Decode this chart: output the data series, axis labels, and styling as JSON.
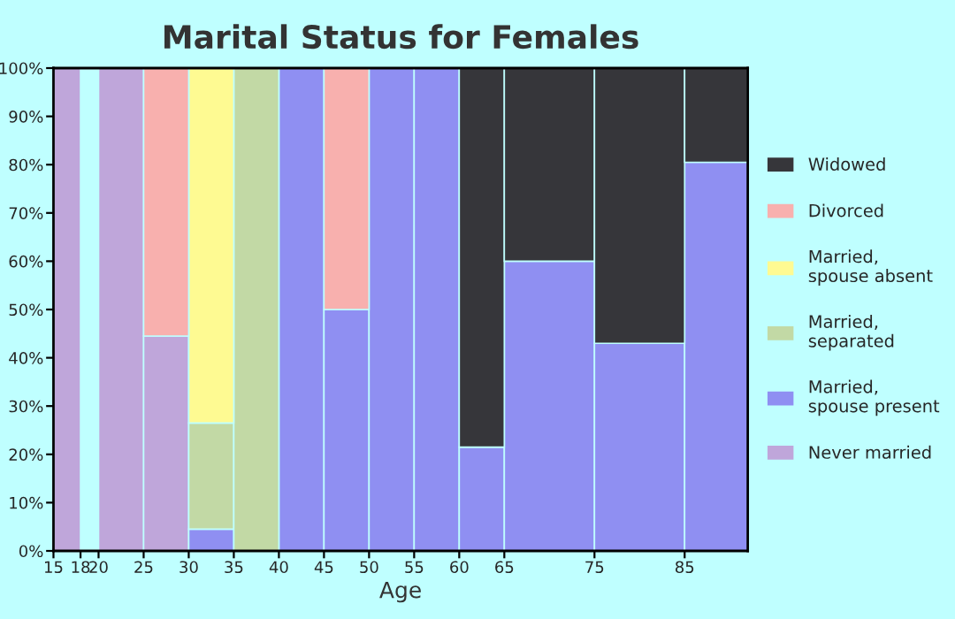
{
  "chart_data": {
    "type": "bar",
    "stacked": true,
    "title": "Marital Status for Females",
    "xlabel": "Age",
    "x": [
      16.5,
      19,
      22.5,
      27.5,
      32.5,
      37.5,
      42.5,
      47.5,
      52.5,
      57.5,
      62.5,
      70,
      80,
      88.5
    ],
    "xlim": [
      15,
      92
    ],
    "xticks": [
      15,
      18,
      20,
      25,
      30,
      35,
      40,
      45,
      50,
      55,
      60,
      65,
      75,
      85
    ],
    "ylim": [
      0,
      100
    ],
    "yticks": [
      {
        "value": 0,
        "label": "0%"
      },
      {
        "value": 10,
        "label": "10%"
      },
      {
        "value": 20,
        "label": "20%"
      },
      {
        "value": 30,
        "label": "30%"
      },
      {
        "value": 40,
        "label": "40%"
      },
      {
        "value": 50,
        "label": "50%"
      },
      {
        "value": 60,
        "label": "60%"
      },
      {
        "value": 70,
        "label": "70%"
      },
      {
        "value": 80,
        "label": "80%"
      },
      {
        "value": 90,
        "label": "90%"
      },
      {
        "value": 100,
        "label": "100%"
      }
    ],
    "grid": false,
    "legend": "right",
    "series": [
      {
        "name": "Never married",
        "color": "#bfa6da",
        "values": [
          100,
          null,
          100,
          44.5,
          null,
          null,
          null,
          null,
          null,
          null,
          null,
          null,
          null,
          null
        ]
      },
      {
        "name": "Married,\nspouse present",
        "color": "#8f8ff2",
        "values": [
          null,
          null,
          null,
          null,
          4.5,
          null,
          100,
          50,
          100,
          100,
          21.5,
          60,
          43,
          80.5
        ]
      },
      {
        "name": "Married,\nseparated",
        "color": "#c2d9a5",
        "values": [
          null,
          null,
          null,
          null,
          22,
          100,
          null,
          null,
          null,
          null,
          null,
          null,
          null,
          null
        ]
      },
      {
        "name": "Married,\nspouse absent",
        "color": "#fefa92",
        "values": [
          null,
          null,
          null,
          null,
          73.5,
          null,
          null,
          null,
          null,
          null,
          null,
          null,
          null,
          null
        ]
      },
      {
        "name": "Divorced",
        "color": "#f8b0ae",
        "values": [
          null,
          null,
          null,
          55.5,
          null,
          null,
          null,
          50,
          null,
          null,
          null,
          null,
          null,
          null
        ]
      },
      {
        "name": "Widowed",
        "color": "#36363a",
        "values": [
          null,
          null,
          null,
          null,
          null,
          null,
          null,
          null,
          null,
          null,
          78.5,
          40,
          57,
          19.5
        ]
      }
    ]
  }
}
